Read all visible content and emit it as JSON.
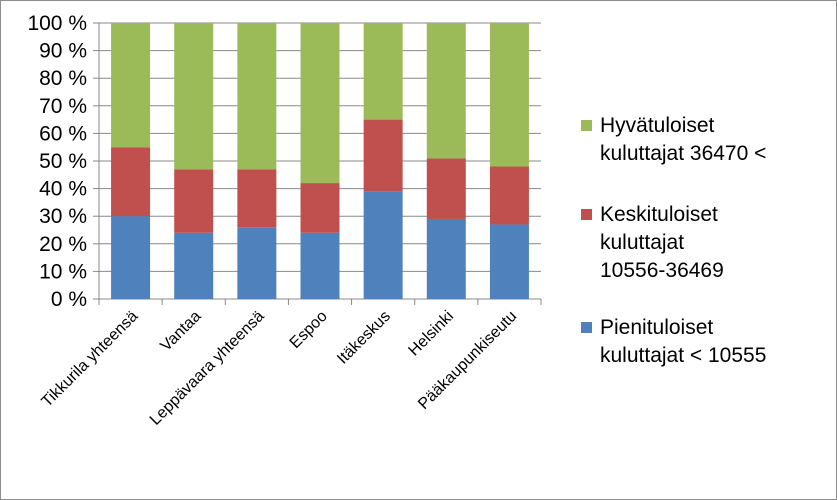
{
  "chart_data": {
    "type": "bar",
    "stacked": true,
    "percent_stacked": true,
    "categories": [
      "Tikkurila yhteensä",
      "Vantaa",
      "Leppävaara yhteensä",
      "Espoo",
      "Itäkeskus",
      "Helsinki",
      "Pääkaupunkiseutu"
    ],
    "series": [
      {
        "name": "Pienituloiset kuluttajat < 10555",
        "color": "#4f81bd",
        "values": [
          30,
          24,
          26,
          24,
          39,
          29,
          27
        ]
      },
      {
        "name": "Keskituloiset kuluttajat 10556-36469",
        "color": "#c0504d",
        "values": [
          25,
          23,
          21,
          18,
          26,
          22,
          21
        ]
      },
      {
        "name": "Hyvätuloiset kuluttajat 36470 <",
        "color": "#9bbb59",
        "values": [
          45,
          53,
          53,
          58,
          35,
          49,
          52
        ]
      }
    ],
    "yticks": [
      "0 %",
      "10 %",
      "20 %",
      "30 %",
      "40 %",
      "50 %",
      "60 %",
      "70 %",
      "80 %",
      "90 %",
      "100 %"
    ],
    "ylim": [
      0,
      100
    ],
    "grid": true,
    "legend_position": "right",
    "legend": [
      {
        "lines": [
          "Hyvätuloiset",
          "kuluttajat 36470 <"
        ],
        "color": "#9bbb59"
      },
      {
        "lines": [
          "Keskituloiset",
          "kuluttajat",
          "10556-36469"
        ],
        "color": "#c0504d"
      },
      {
        "lines": [
          "Pienituloiset",
          "kuluttajat < 10555"
        ],
        "color": "#4f81bd"
      }
    ]
  }
}
